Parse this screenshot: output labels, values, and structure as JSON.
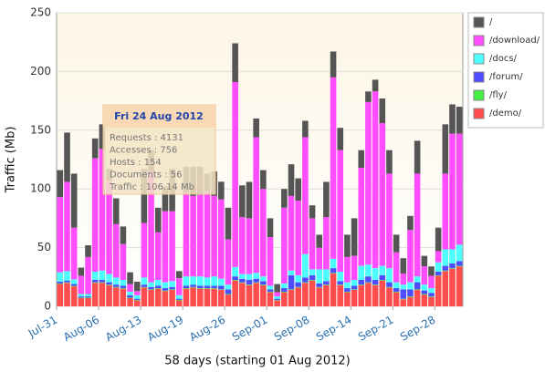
{
  "chart_data": {
    "type": "stacked-bar",
    "xlabel": "58 days (starting 01 Aug 2012)",
    "ylabel": "Traffic (Mb)",
    "x": [
      1,
      2,
      3,
      4,
      5,
      6,
      7,
      8,
      9,
      10,
      11,
      12,
      13,
      14,
      15,
      16,
      17,
      18,
      19,
      20,
      21,
      22,
      23,
      24,
      25,
      26,
      27,
      28,
      29,
      30,
      31,
      32,
      33,
      34,
      35,
      36,
      37,
      38,
      39,
      40,
      41,
      42,
      43,
      44,
      45,
      46,
      47,
      48,
      49,
      50,
      51,
      52,
      53,
      54,
      55,
      56,
      57,
      58
    ],
    "xlim": [
      0,
      58
    ],
    "xticks": [
      {
        "value": 0,
        "label": "Jul-31"
      },
      {
        "value": 6,
        "label": "Aug-06"
      },
      {
        "value": 12,
        "label": "Aug-13"
      },
      {
        "value": 18,
        "label": "Aug-19"
      },
      {
        "value": 24,
        "label": "Aug-26"
      },
      {
        "value": 30,
        "label": "Sep-01"
      },
      {
        "value": 36,
        "label": "Sep-08"
      },
      {
        "value": 42,
        "label": "Sep-14"
      },
      {
        "value": 48,
        "label": "Sep-21"
      },
      {
        "value": 54,
        "label": "Sep-28"
      }
    ],
    "ylim": [
      0,
      250
    ],
    "yticks": [
      0,
      50,
      100,
      150,
      200,
      250
    ],
    "grid": true,
    "legend": "right",
    "series": [
      {
        "name": "/demo/",
        "color": "#ff4d4d",
        "values": [
          19,
          20,
          17,
          7,
          7,
          20,
          20,
          18,
          16,
          15,
          7,
          5,
          16,
          14,
          15,
          13,
          14,
          5,
          15,
          16,
          15,
          15,
          15,
          14,
          10,
          22,
          20,
          18,
          20,
          18,
          12,
          5,
          12,
          14,
          16,
          20,
          22,
          16,
          18,
          28,
          18,
          12,
          14,
          18,
          20,
          18,
          22,
          16,
          12,
          6,
          8,
          14,
          10,
          8,
          26,
          30,
          32,
          34
        ]
      },
      {
        "name": "/fly/",
        "color": "#44ee44",
        "values": [
          0.5,
          0.5,
          0.5,
          0.5,
          0.5,
          0.5,
          0.5,
          0.5,
          0.5,
          0.5,
          0.5,
          0.5,
          0.5,
          0.5,
          0.5,
          0.5,
          0.5,
          0.5,
          0.5,
          0.5,
          0.5,
          0.5,
          0.5,
          0.5,
          0.5,
          0.5,
          0.5,
          0.5,
          0.5,
          0.5,
          0.5,
          0.5,
          0.5,
          0.5,
          0.5,
          0.5,
          0.5,
          0.5,
          0.5,
          0.5,
          0.5,
          0.5,
          0.5,
          0.5,
          0.5,
          0.5,
          0.5,
          0.5,
          0.5,
          0.5,
          0.5,
          0.5,
          0.5,
          0.5,
          0.5,
          0.5,
          0.5,
          0.5
        ]
      },
      {
        "name": "/forum/",
        "color": "#4d4dff",
        "values": [
          1.5,
          1.5,
          1.5,
          1,
          1,
          2,
          2,
          2,
          2,
          2,
          2,
          1,
          2,
          2,
          2,
          2,
          2,
          1,
          2,
          2,
          2,
          2,
          2,
          3,
          4,
          3,
          3,
          4,
          3,
          3,
          2,
          1,
          3,
          12,
          4,
          4,
          4,
          3,
          3,
          4,
          3,
          3,
          3,
          4,
          5,
          4,
          4,
          4,
          3,
          8,
          6,
          6,
          3,
          3,
          3,
          4,
          4,
          4
        ]
      },
      {
        "name": "/docs/",
        "color": "#4dffff",
        "values": [
          8,
          8,
          4,
          2,
          2,
          7,
          8,
          7,
          6,
          5,
          3,
          3,
          6,
          4,
          5,
          5,
          5,
          3,
          8,
          7,
          8,
          7,
          8,
          6,
          4,
          8,
          4,
          5,
          5,
          4,
          3,
          2,
          4,
          4,
          6,
          20,
          5,
          12,
          10,
          8,
          8,
          5,
          5,
          12,
          10,
          10,
          8,
          12,
          5,
          4,
          6,
          5,
          5,
          4,
          8,
          14,
          12,
          14
        ]
      },
      {
        "name": "/download/",
        "color": "#ff4dff",
        "values": [
          64,
          76,
          44,
          15.5,
          31.5,
          96.5,
          103.5,
          79.5,
          45.5,
          30.5,
          6.5,
          3.5,
          46.5,
          94.5,
          40.5,
          60.5,
          59.5,
          14.5,
          71.5,
          68.5,
          69.5,
          73.5,
          68.5,
          67.5,
          38.5,
          157.5,
          48.5,
          47.5,
          115.5,
          74.5,
          41.5,
          3.5,
          64.5,
          63.5,
          63.5,
          99.5,
          43.5,
          18.5,
          44.5,
          154.5,
          103.5,
          21.5,
          20.5,
          83.5,
          138.5,
          150.5,
          121.5,
          80.5,
          25.5,
          9.5,
          44.5,
          87.5,
          15.5,
          10.5,
          9.5,
          64.5,
          98.5,
          94.5
        ]
      },
      {
        "name": "/",
        "color": "#555555",
        "values": [
          23,
          42,
          46,
          7,
          10,
          17,
          21,
          10,
          22,
          15,
          10,
          8,
          46,
          18,
          21,
          21,
          36,
          6,
          22,
          25,
          24,
          15,
          21,
          15.14,
          27,
          33,
          27,
          31,
          16,
          16,
          16,
          7,
          16,
          27,
          19,
          14,
          11,
          11,
          30,
          22,
          19,
          19,
          32,
          15,
          9,
          10,
          21,
          20,
          15,
          13,
          12,
          28,
          9,
          8,
          20,
          42,
          25,
          23
        ]
      }
    ],
    "tooltip": {
      "title": "Fri 24 Aug 2012",
      "lines": [
        "Requests : 4131",
        "Accesses : 756",
        "Hosts : 154",
        "Documents : 56",
        "Traffic : 106.14 Mb"
      ]
    }
  }
}
